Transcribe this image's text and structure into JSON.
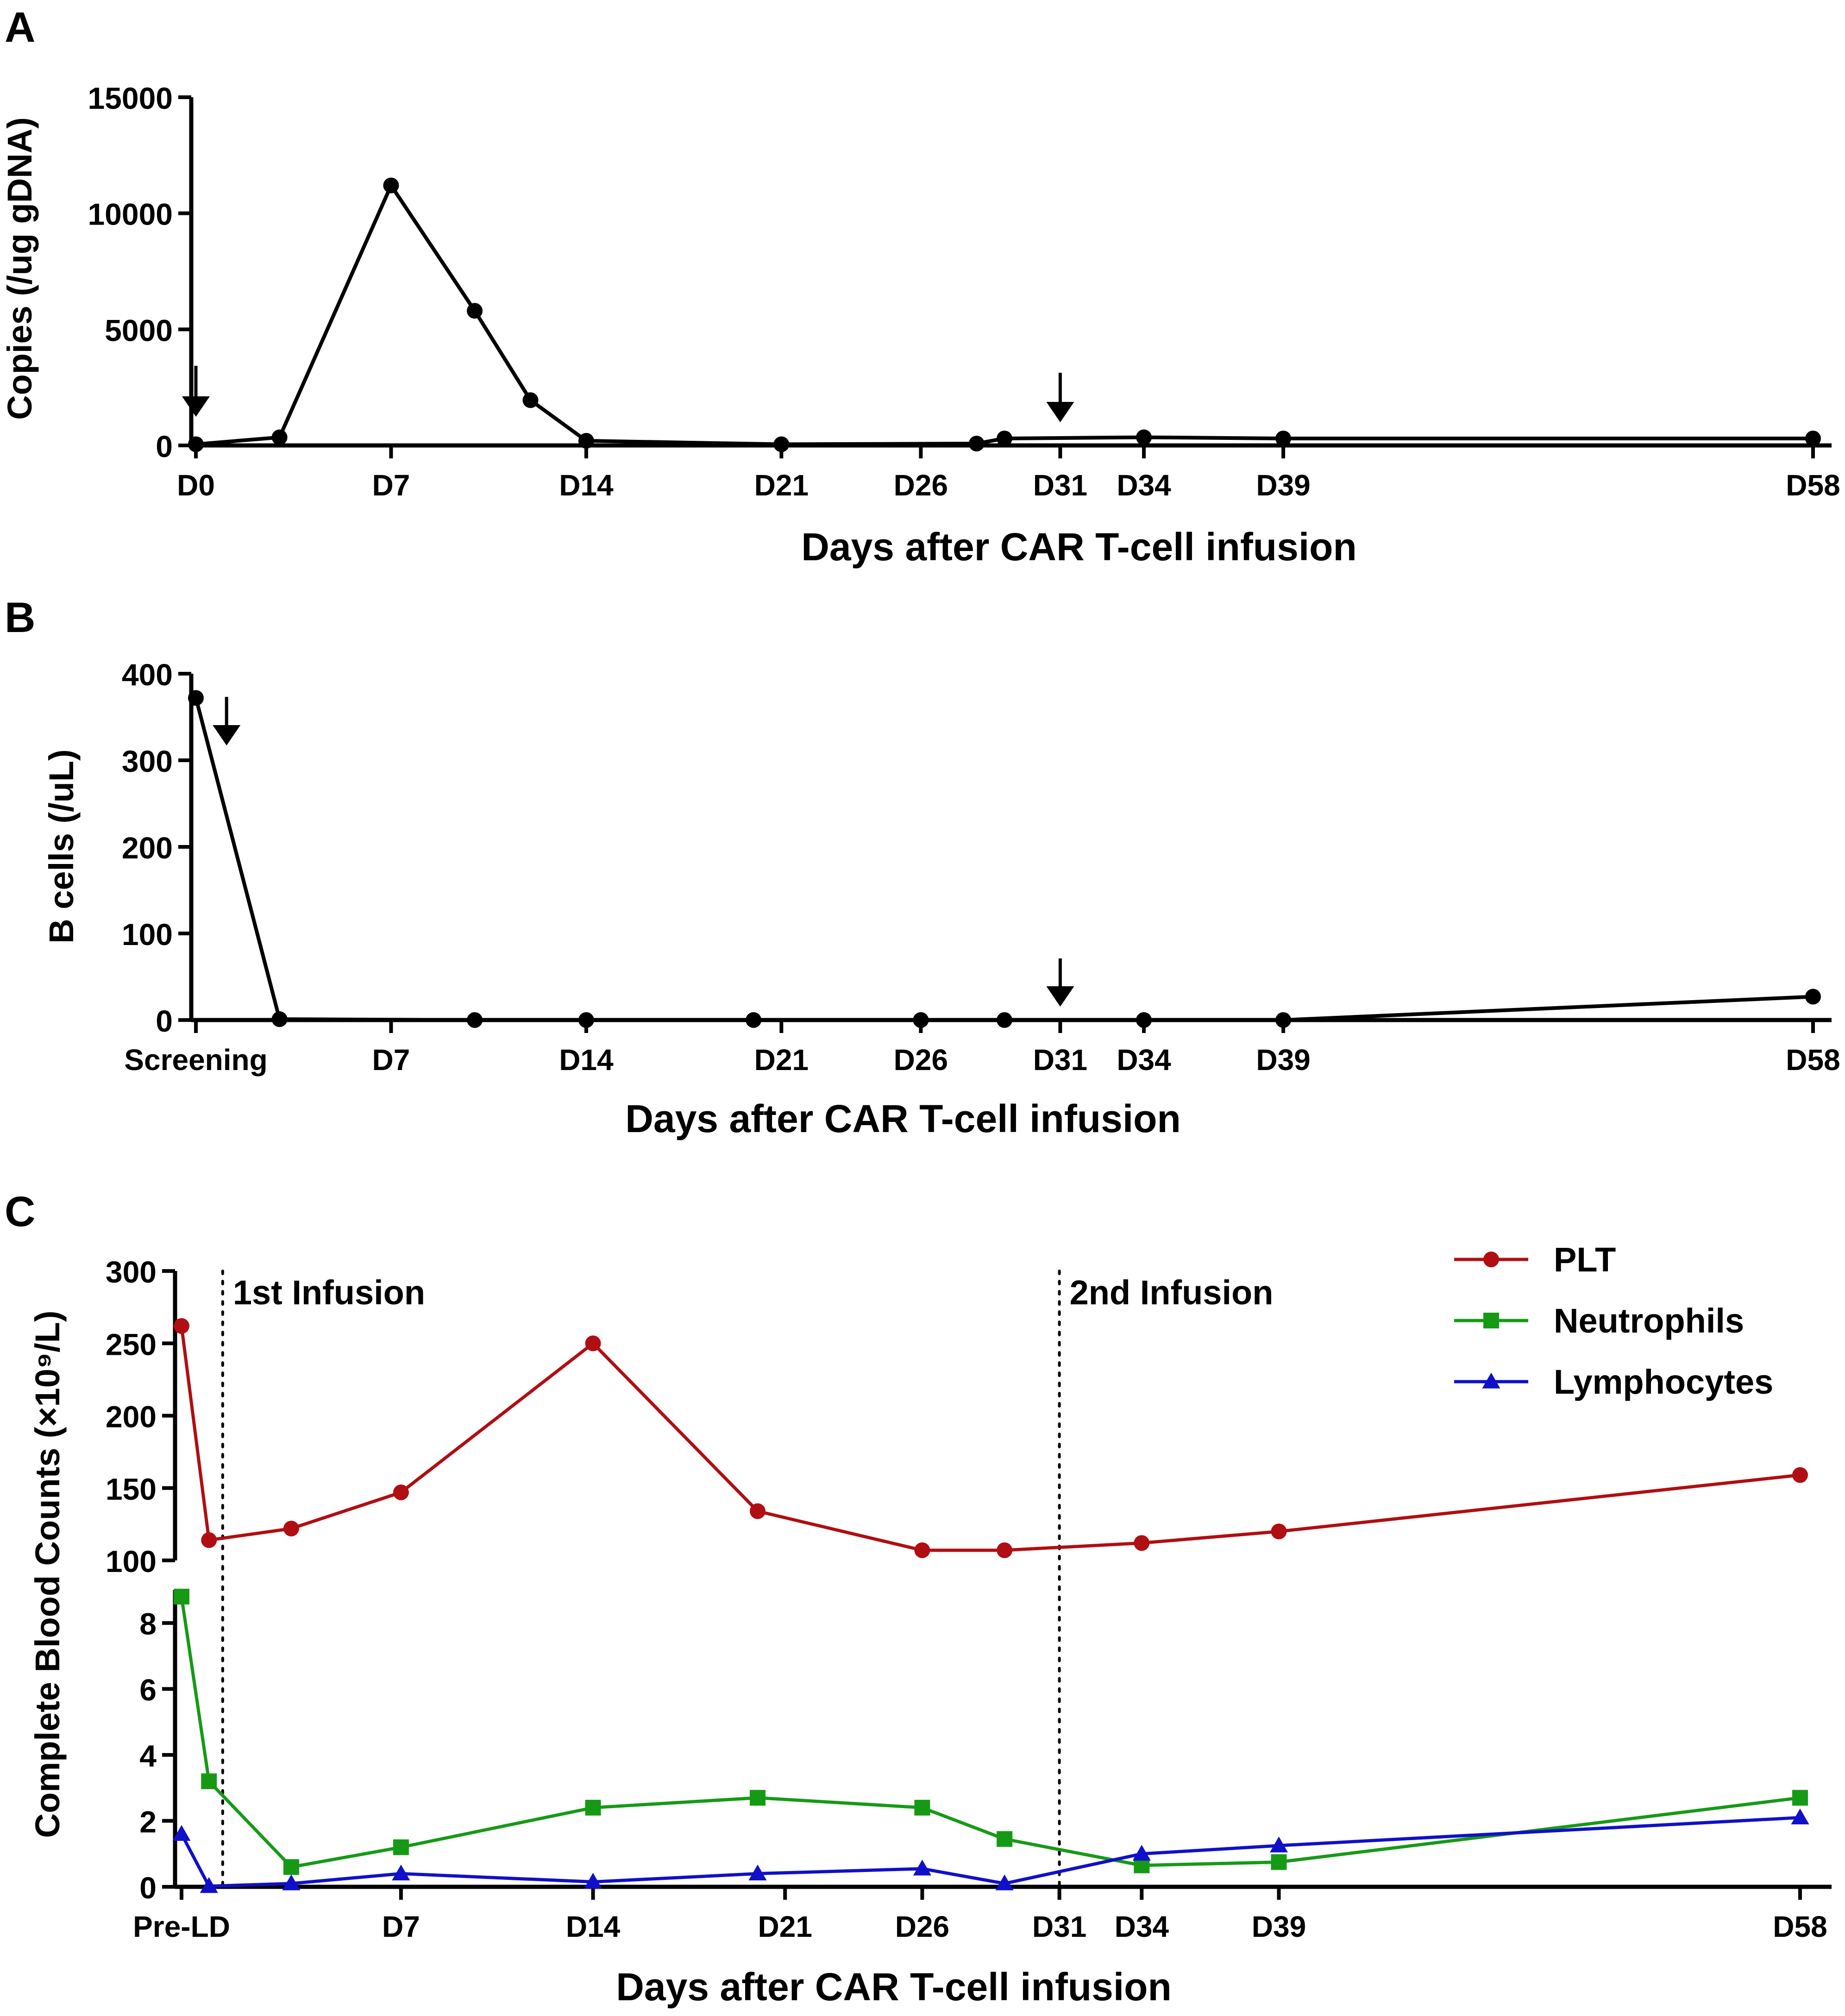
{
  "chart_data": [
    {
      "panel": "A",
      "type": "line",
      "ylabel": "Copies (/ug gDNA)",
      "xlabel": "Days after CAR T-cell infusion",
      "ylim": [
        0,
        15000
      ],
      "yticks": [
        0,
        5000,
        10000,
        15000
      ],
      "xlim": [
        0,
        58
      ],
      "xticks": [
        {
          "label": "D0",
          "x": 0
        },
        {
          "label": "D7",
          "x": 7
        },
        {
          "label": "D14",
          "x": 14
        },
        {
          "label": "D21",
          "x": 21
        },
        {
          "label": "D26",
          "x": 26
        },
        {
          "label": "D31",
          "x": 31
        },
        {
          "label": "D34",
          "x": 34
        },
        {
          "label": "D39",
          "x": 39
        },
        {
          "label": "D58",
          "x": 58
        }
      ],
      "series": [
        {
          "name": "CAR copies",
          "color": "#000000",
          "marker": "circle",
          "points": [
            [
              0,
              50
            ],
            [
              3,
              350
            ],
            [
              7,
              11200
            ],
            [
              10,
              5800
            ],
            [
              12,
              1950
            ],
            [
              14,
              200
            ],
            [
              21,
              50
            ],
            [
              28,
              80
            ],
            [
              29,
              300
            ],
            [
              34,
              350
            ],
            [
              39,
              300
            ],
            [
              58,
              300
            ]
          ]
        }
      ],
      "annotations": [
        {
          "type": "arrow",
          "x": 0,
          "label": "CAR T-cell infusion"
        },
        {
          "type": "arrow",
          "x": 31,
          "label": "second infusion"
        }
      ]
    },
    {
      "panel": "B",
      "type": "line",
      "ylabel": "B cells (/uL)",
      "xlabel": "Days after CAR T-cell infusion",
      "ylim": [
        0,
        400
      ],
      "yticks": [
        0,
        100,
        200,
        300,
        400
      ],
      "xlim": [
        0,
        58
      ],
      "xticks": [
        {
          "label": "Screening",
          "x": 0
        },
        {
          "label": "D7",
          "x": 7
        },
        {
          "label": "D14",
          "x": 14
        },
        {
          "label": "D21",
          "x": 21
        },
        {
          "label": "D26",
          "x": 26
        },
        {
          "label": "D31",
          "x": 31
        },
        {
          "label": "D34",
          "x": 34
        },
        {
          "label": "D39",
          "x": 39
        },
        {
          "label": "D58",
          "x": 58
        }
      ],
      "series": [
        {
          "name": "B cells",
          "color": "#000000",
          "marker": "circle",
          "points": [
            [
              0,
              372
            ],
            [
              3,
              1
            ],
            [
              10,
              0
            ],
            [
              14,
              0
            ],
            [
              20,
              0
            ],
            [
              26,
              0
            ],
            [
              29,
              0
            ],
            [
              34,
              0
            ],
            [
              39,
              0
            ],
            [
              58,
              27
            ]
          ]
        }
      ],
      "annotations": [
        {
          "type": "arrow",
          "x": 1,
          "label": "CAR T-cell infusion"
        },
        {
          "type": "arrow",
          "x": 31,
          "label": "second infusion"
        }
      ]
    },
    {
      "panel": "C",
      "type": "line",
      "ylabel": "Complete Blood Counts (×10⁹/L)",
      "xlabel": "Days after CAR T-cell infusion",
      "upper_ylim": [
        100,
        300
      ],
      "upper_yticks": [
        100,
        150,
        200,
        250,
        300
      ],
      "lower_ylim": [
        0,
        9
      ],
      "lower_yticks": [
        0,
        2,
        4,
        6,
        8
      ],
      "xlim": [
        -1,
        58
      ],
      "xticks": [
        {
          "label": "Pre-LD",
          "x": -1
        },
        {
          "label": "D7",
          "x": 7
        },
        {
          "label": "D14",
          "x": 14
        },
        {
          "label": "D21",
          "x": 21
        },
        {
          "label": "D26",
          "x": 26
        },
        {
          "label": "D31",
          "x": 31
        },
        {
          "label": "D34",
          "x": 34
        },
        {
          "label": "D39",
          "x": 39
        },
        {
          "label": "D58",
          "x": 58
        }
      ],
      "vlines": [
        {
          "x": 0.5,
          "label": "1st Infusion"
        },
        {
          "x": 31,
          "label": "2nd Infusion"
        }
      ],
      "legend": "top-right",
      "series": [
        {
          "name": "PLT",
          "color": "#b00e12",
          "marker": "circle",
          "axis": "upper",
          "points": [
            [
              -1,
              262
            ],
            [
              0,
              114
            ],
            [
              3,
              122
            ],
            [
              7,
              147
            ],
            [
              14,
              250
            ],
            [
              20,
              134
            ],
            [
              26,
              107
            ],
            [
              29,
              107
            ],
            [
              34,
              112
            ],
            [
              39,
              120
            ],
            [
              58,
              159
            ]
          ]
        },
        {
          "name": "Neutrophils",
          "color": "#169a16",
          "marker": "square",
          "axis": "lower",
          "points": [
            [
              -1,
              8.8
            ],
            [
              0,
              3.2
            ],
            [
              3,
              0.6
            ],
            [
              7,
              1.2
            ],
            [
              14,
              2.4
            ],
            [
              20,
              2.7
            ],
            [
              26,
              2.4
            ],
            [
              29,
              1.45
            ],
            [
              34,
              0.65
            ],
            [
              39,
              0.75
            ],
            [
              58,
              2.7
            ]
          ]
        },
        {
          "name": "Lymphocytes",
          "color": "#1010c8",
          "marker": "triangle",
          "axis": "lower",
          "points": [
            [
              -1,
              1.6
            ],
            [
              0,
              0.02
            ],
            [
              3,
              0.1
            ],
            [
              7,
              0.4
            ],
            [
              14,
              0.15
            ],
            [
              20,
              0.4
            ],
            [
              26,
              0.55
            ],
            [
              29,
              0.1
            ],
            [
              34,
              1.0
            ],
            [
              39,
              1.25
            ],
            [
              58,
              2.1
            ]
          ]
        }
      ]
    }
  ]
}
